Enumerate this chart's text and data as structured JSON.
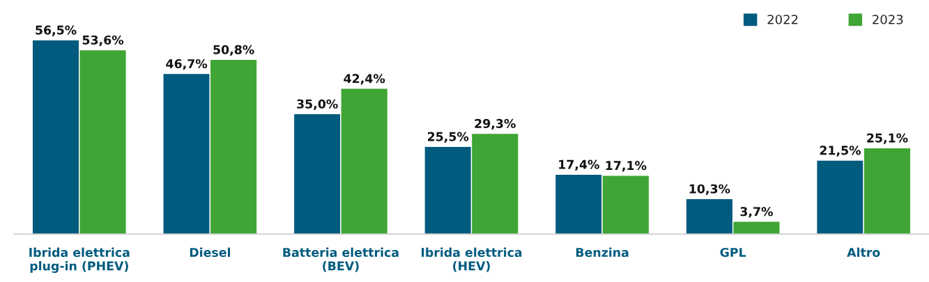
{
  "chart_data": {
    "type": "bar",
    "categories": [
      "Ibrida elettrica\nplug-in (PHEV)",
      "Diesel",
      "Batteria elettrica\n(BEV)",
      "Ibrida elettrica\n(HEV)",
      "Benzina",
      "GPL",
      "Altro"
    ],
    "series": [
      {
        "name": "2022",
        "color": "#005b7f",
        "values": [
          56.5,
          46.7,
          35.0,
          25.5,
          17.4,
          10.3,
          21.5
        ],
        "value_labels": [
          "56,5%",
          "46,7%",
          "35,0%",
          "25,5%",
          "17,4%",
          "10,3%",
          "21,5%"
        ]
      },
      {
        "name": "2023",
        "color": "#3fa535",
        "values": [
          53.6,
          50.8,
          42.4,
          29.3,
          17.1,
          3.7,
          25.1
        ],
        "value_labels": [
          "53,6%",
          "50,8%",
          "42,4%",
          "29,3%",
          "17,1%",
          "3,7%",
          "25,1%"
        ]
      }
    ],
    "legend": "top right",
    "grid": false
  }
}
